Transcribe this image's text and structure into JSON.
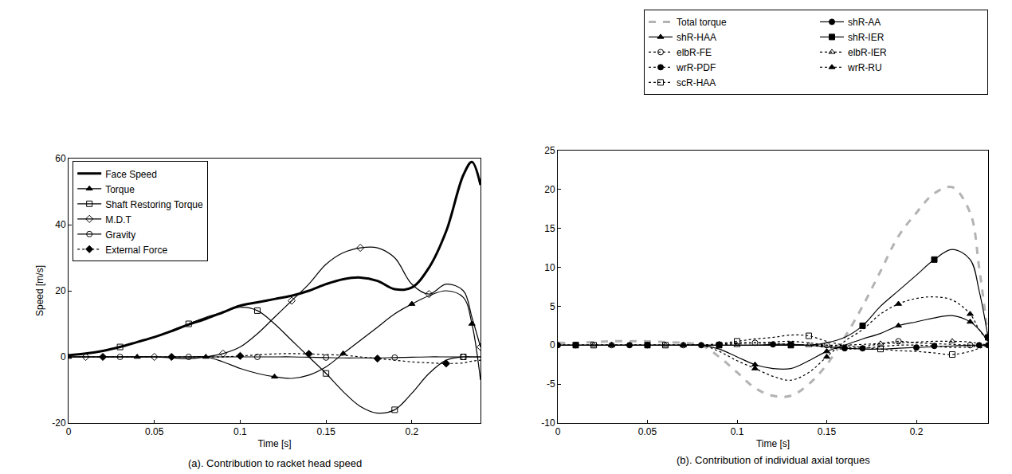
{
  "chart_data": [
    {
      "type": "line",
      "title": "(a). Contribution to racket head speed",
      "x_label": "Time [s]",
      "y_label": "Speed [m/s]",
      "x": [
        0,
        0.01,
        0.02,
        0.03,
        0.04,
        0.05,
        0.06,
        0.07,
        0.08,
        0.09,
        0.1,
        0.11,
        0.12,
        0.13,
        0.14,
        0.15,
        0.16,
        0.17,
        0.18,
        0.19,
        0.2,
        0.21,
        0.22,
        0.23,
        0.235,
        0.24
      ],
      "xlim": [
        0,
        0.24
      ],
      "xticks": [
        0,
        0.05,
        0.1,
        0.15,
        0.2
      ],
      "ylim": [
        -20,
        60
      ],
      "yticks": [
        -20,
        0,
        20,
        40,
        60
      ],
      "grid": false,
      "legend": "upper left",
      "series": [
        {
          "name": "Face Speed",
          "color": "#000000",
          "marker": "none",
          "line_style": "solid",
          "values": [
            0.5,
            1,
            1.8,
            3,
            4.5,
            6,
            7.8,
            9.8,
            11.5,
            13.5,
            15.5,
            16.5,
            17.5,
            18.5,
            20,
            22,
            23.5,
            24,
            23,
            20.5,
            21,
            27,
            38,
            55,
            59,
            52
          ]
        },
        {
          "name": "Torque",
          "color": "#000000",
          "marker": "triangle-up",
          "line_style": "solid",
          "values": [
            0,
            0,
            0,
            0,
            0,
            0,
            0,
            0,
            0,
            -1.5,
            -3.5,
            -5,
            -6,
            -6.5,
            -5.5,
            -3,
            1,
            5,
            9,
            13,
            16,
            18.5,
            20,
            18,
            10,
            -7
          ]
        },
        {
          "name": "Shaft Restoring Torque",
          "color": "#000000",
          "marker": "square-open",
          "line_style": "solid",
          "values": [
            0.5,
            1,
            1.8,
            3,
            4.5,
            6,
            8,
            10,
            12,
            13.5,
            15,
            14,
            10,
            5,
            0,
            -5,
            -10.5,
            -15,
            -17,
            -16,
            -11,
            -5,
            -1,
            0,
            0,
            0
          ]
        },
        {
          "name": "M.D.T",
          "color": "#000000",
          "marker": "diamond-open",
          "line_style": "solid",
          "values": [
            0,
            0,
            0,
            0,
            0,
            0,
            -0.3,
            -0.5,
            0,
            1,
            3,
            7,
            12,
            17,
            22,
            28,
            31.5,
            33,
            33,
            30,
            22,
            19,
            22,
            20,
            12,
            3
          ]
        },
        {
          "name": "Gravity",
          "color": "#000000",
          "marker": "circle-open",
          "line_style": "solid",
          "values": [
            0,
            0,
            0,
            0,
            0,
            0,
            0,
            0,
            0,
            0,
            0,
            0,
            0,
            0,
            -0.1,
            -0.2,
            -0.3,
            -0.3,
            -0.3,
            -0.2,
            -0.1,
            0,
            0,
            0,
            0,
            0
          ]
        },
        {
          "name": "External Force",
          "color": "#000000",
          "marker": "diamond",
          "line_style": "dotted",
          "values": [
            0,
            0,
            0,
            0,
            0,
            0,
            0,
            0,
            0,
            0,
            0.3,
            0.6,
            0.9,
            1,
            0.9,
            0.7,
            0.5,
            0,
            -0.5,
            -1,
            -1.5,
            -1.8,
            -2,
            -1.8,
            -1.3,
            -1
          ]
        }
      ]
    },
    {
      "type": "line",
      "title": "(b). Contribution of individual axial torques",
      "x_label": "Time [s]",
      "x": [
        0,
        0.01,
        0.02,
        0.03,
        0.04,
        0.05,
        0.06,
        0.07,
        0.08,
        0.09,
        0.1,
        0.11,
        0.12,
        0.13,
        0.14,
        0.15,
        0.16,
        0.17,
        0.18,
        0.19,
        0.2,
        0.21,
        0.22,
        0.23,
        0.235,
        0.24
      ],
      "xlim": [
        0,
        0.24
      ],
      "xticks": [
        0,
        0.05,
        0.1,
        0.15,
        0.2
      ],
      "ylim": [
        -10,
        25
      ],
      "yticks": [
        -10,
        -5,
        0,
        5,
        10,
        15,
        20,
        25
      ],
      "grid": false,
      "legend": "top",
      "series": [
        {
          "name": "Total torque",
          "color": "#b3b3b3",
          "marker": "none",
          "line_style": "dashed",
          "values": [
            0.3,
            0.3,
            0.4,
            0.5,
            0.5,
            0.5,
            0.4,
            0.3,
            0,
            -1.5,
            -3.5,
            -5.5,
            -6.5,
            -6.5,
            -5,
            -2.5,
            1,
            5,
            9.5,
            14,
            17,
            19.5,
            20.3,
            17,
            10,
            1
          ]
        },
        {
          "name": "shR-AA",
          "color": "#000000",
          "marker": "circle",
          "line_style": "solid",
          "values": [
            0,
            0,
            0,
            0,
            0,
            0,
            0,
            0,
            0,
            0,
            0,
            0,
            0.1,
            0.1,
            0,
            -0.2,
            -0.4,
            -0.5,
            -0.5,
            -0.4,
            -0.3,
            -0.2,
            -0.1,
            0,
            0,
            0
          ]
        },
        {
          "name": "shR-HAA",
          "color": "#000000",
          "marker": "triangle-up",
          "line_style": "solid",
          "values": [
            0,
            0,
            0,
            0,
            0,
            0,
            0,
            0,
            0,
            -0.5,
            -1.5,
            -2.5,
            -3,
            -3,
            -2,
            -0.8,
            0,
            0.8,
            1.5,
            2.5,
            3,
            3.5,
            3.8,
            3,
            2,
            0.5
          ]
        },
        {
          "name": "shR-IER",
          "color": "#000000",
          "marker": "square",
          "line_style": "solid",
          "values": [
            0,
            0,
            0,
            0,
            0,
            0,
            0,
            0,
            0,
            0,
            0,
            0,
            0,
            0,
            0,
            0.3,
            1,
            2.5,
            5,
            7,
            9,
            11,
            12.3,
            11,
            7,
            1
          ]
        },
        {
          "name": "elbR-FE",
          "color": "#000000",
          "marker": "circle-open",
          "line_style": "dotted",
          "values": [
            0,
            0,
            0,
            0,
            0,
            0,
            0,
            0,
            0,
            0,
            0.2,
            0.3,
            0.4,
            0.5,
            0.3,
            0,
            -0.3,
            -0.2,
            0.2,
            0.5,
            0.3,
            0.2,
            0.1,
            0,
            0,
            0
          ]
        },
        {
          "name": "elbR-IER",
          "color": "#000000",
          "marker": "triangle-up-open",
          "line_style": "dotted",
          "values": [
            0,
            0,
            0,
            0,
            0,
            0,
            0,
            0,
            0,
            0,
            0,
            0,
            0,
            0,
            0,
            0,
            0,
            0.1,
            0.2,
            0.3,
            0.4,
            0.5,
            0.5,
            0.4,
            0.2,
            0
          ]
        },
        {
          "name": "wrR-PDF",
          "color": "#000000",
          "marker": "circle",
          "line_style": "dotted",
          "values": [
            0,
            0,
            0,
            0,
            0,
            0,
            0,
            0,
            0,
            0.1,
            0.3,
            0.3,
            0.2,
            0.1,
            0,
            -0.3,
            -0.5,
            -0.4,
            -0.2,
            0,
            0,
            -0.1,
            -0.3,
            -0.2,
            -0.1,
            0
          ]
        },
        {
          "name": "wrR-RU",
          "color": "#000000",
          "marker": "triangle-up",
          "line_style": "dotted",
          "values": [
            0,
            0,
            0,
            0,
            0,
            0,
            0,
            0,
            0,
            -0.8,
            -2,
            -3,
            -4,
            -4.5,
            -3.5,
            -1.5,
            0.5,
            2,
            4,
            5.3,
            6,
            6.2,
            5.8,
            4,
            2,
            0.5
          ]
        },
        {
          "name": "scR-HAA",
          "color": "#000000",
          "marker": "square-open",
          "line_style": "dotted",
          "values": [
            0,
            0,
            0,
            0,
            0,
            0,
            0,
            0,
            0,
            0.2,
            0.5,
            0.8,
            1,
            1.3,
            1.2,
            0.5,
            0,
            -0.3,
            -0.5,
            -0.7,
            -0.8,
            -1,
            -1.2,
            -0.8,
            -0.4,
            0
          ]
        }
      ]
    }
  ]
}
